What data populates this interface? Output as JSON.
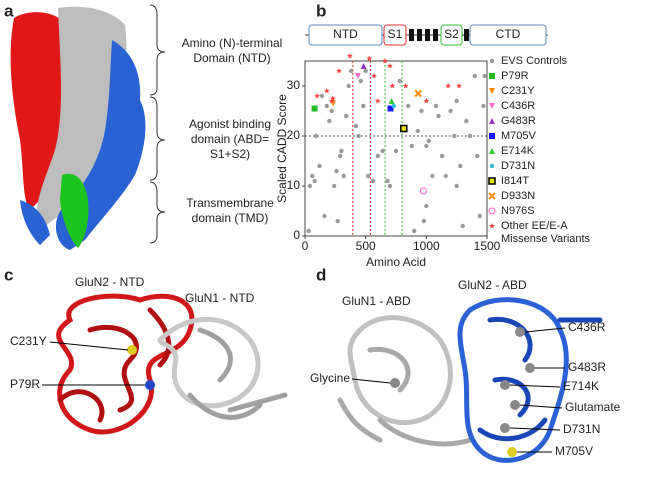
{
  "panels": {
    "a": {
      "label": "a",
      "domains": [
        "Amino (N)-terminal Domain (NTD)",
        "Agonist binding domain (ABD= S1+S2)",
        "Transmembrane domain (TMD)"
      ]
    },
    "b": {
      "label": "b"
    },
    "c": {
      "label": "c",
      "subunits": [
        "GluN2 - NTD",
        "GluN1 - NTD"
      ],
      "mutations": [
        "C231Y",
        "P79R"
      ]
    },
    "d": {
      "label": "d",
      "subunits": [
        "GluN1 - ABD",
        "GluN2 - ABD"
      ],
      "labels": [
        "Glycine",
        "C436R",
        "G483R",
        "E714K",
        "Glutamate",
        "D731N",
        "M705V"
      ]
    }
  },
  "chart_data": {
    "type": "scatter",
    "x_label": "Amino Acid",
    "y_label": "Scaled CADD Score",
    "domains": [
      "NTD",
      "S1",
      "S2",
      "CTD"
    ],
    "xlim": [
      0,
      1500
    ],
    "xticks": [
      0,
      500,
      1000,
      1500
    ],
    "ylim": [
      0,
      35
    ],
    "yticks": [
      0,
      10,
      20,
      30
    ],
    "vlines": [
      {
        "x": 394,
        "color": "#e03030"
      },
      {
        "x": 539,
        "color": "#e03030"
      },
      {
        "x": 660,
        "color": "#30c030"
      },
      {
        "x": 800,
        "color": "#30c030"
      }
    ],
    "hline": 20,
    "series": [
      {
        "name": "EVS Controls",
        "color": "#999999",
        "marker": "dot",
        "x": [
          30,
          40,
          60,
          80,
          90,
          120,
          140,
          160,
          180,
          200,
          220,
          240,
          260,
          270,
          290,
          300,
          320,
          340,
          360,
          380,
          420,
          440,
          460,
          480,
          500,
          520,
          560,
          600,
          640,
          680,
          700,
          750,
          780,
          850,
          880,
          900,
          930,
          960,
          1000,
          1020,
          1050,
          1080,
          1100,
          1130,
          1160,
          1200,
          1230,
          1250,
          1280,
          1300,
          1330,
          1360,
          1400,
          1420,
          1440,
          1470,
          1480,
          980,
          1000,
          1250
        ],
        "values": [
          1,
          10,
          12,
          11,
          20,
          14,
          28,
          4,
          26,
          23,
          25,
          10,
          13,
          3,
          16,
          17,
          12,
          24,
          30,
          33,
          22,
          20,
          31,
          26,
          33,
          12,
          11,
          16,
          17,
          11,
          10,
          17,
          31,
          26,
          18,
          1,
          21,
          25,
          18,
          19,
          12,
          26,
          24,
          16,
          12,
          25,
          20,
          27,
          14,
          2,
          23,
          20,
          32,
          16,
          4,
          26,
          32,
          3,
          6,
          10
        ]
      },
      {
        "name": "P79R",
        "color": "#22bb22",
        "marker": "square",
        "x": [
          79
        ],
        "values": [
          25.5
        ]
      },
      {
        "name": "C231Y",
        "color": "#ff8c00",
        "marker": "tri-down",
        "x": [
          231
        ],
        "values": [
          26.5
        ]
      },
      {
        "name": "C436R",
        "color": "#ff66cc",
        "marker": "tri-down",
        "x": [
          436
        ],
        "values": [
          32
        ]
      },
      {
        "name": "G483R",
        "color": "#9933cc",
        "marker": "tri-up",
        "x": [
          483
        ],
        "values": [
          34
        ]
      },
      {
        "name": "M705V",
        "color": "#1a1aff",
        "marker": "square",
        "x": [
          705
        ],
        "values": [
          25.5
        ]
      },
      {
        "name": "E714K",
        "color": "#33cc33",
        "marker": "tri-up",
        "x": [
          714
        ],
        "values": [
          27
        ]
      },
      {
        "name": "D731N",
        "color": "#33bbdd",
        "marker": "dot",
        "x": [
          731
        ],
        "values": [
          26
        ]
      },
      {
        "name": "I814T",
        "color": "#e6e600",
        "marker": "open-square",
        "x": [
          814
        ],
        "values": [
          21.5
        ]
      },
      {
        "name": "D933N",
        "color": "#ff8c00",
        "marker": "x",
        "x": [
          933
        ],
        "values": [
          28.5
        ]
      },
      {
        "name": "N976S",
        "color": "#ff66cc",
        "marker": "open-circle",
        "x": [
          976
        ],
        "values": [
          9
        ]
      },
      {
        "name": "Other EE/E-A Missense Variants",
        "color": "#ff4444",
        "marker": "star",
        "x": [
          100,
          180,
          220,
          230,
          280,
          370,
          530,
          570,
          600,
          660,
          700,
          720,
          830,
          1000,
          1180,
          1270
        ],
        "values": [
          28,
          29,
          27,
          27.5,
          33,
          36,
          35.5,
          32,
          27,
          35,
          34,
          30,
          30,
          27,
          30,
          30
        ]
      }
    ]
  }
}
